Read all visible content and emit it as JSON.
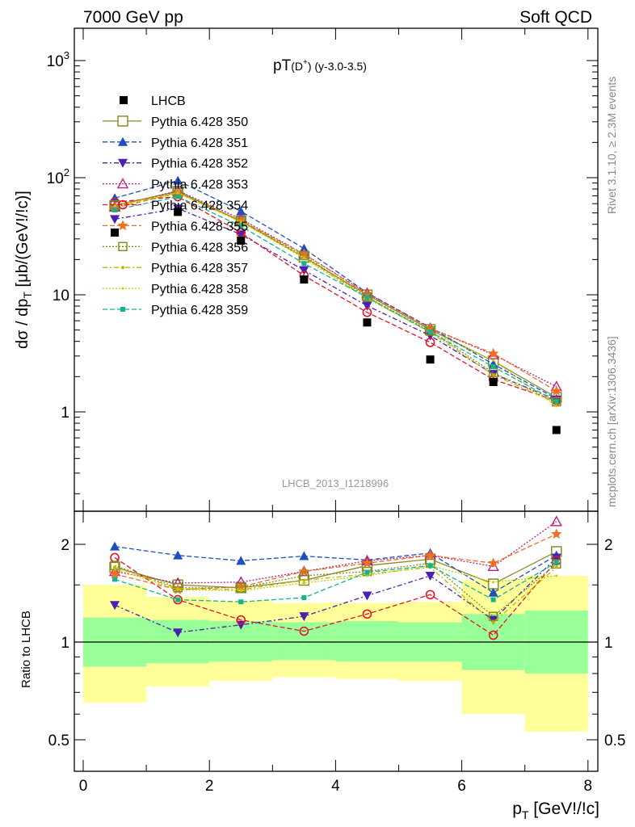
{
  "header": {
    "left_label": "7000 GeV pp",
    "right_label": "Soft QCD",
    "plot_title_main": "pT",
    "plot_title_particle": "(D",
    "plot_title_sup": "+",
    "plot_title_close": ")",
    "plot_title_range": "(y-3.0-3.5)",
    "side_label_top": "Rivet 3.1.10, ≥ 2.3M events",
    "side_label_bottom": "mcplots.cern.ch [arXiv:1306.3436]",
    "analysis_id": "LHCB_2013_I1218996"
  },
  "axes": {
    "ylabel_main": "dσ / dp",
    "ylabel_main_sub": "T",
    "ylabel_main_unit": " [μb/(GeV!/!c)]",
    "ylabel_ratio": "Ratio to LHCB",
    "xlabel": "p",
    "xlabel_sub": "T",
    "xlabel_unit": " [GeV!/!c]",
    "main_ticks": [
      "1",
      "10",
      "10",
      "10"
    ],
    "main_tick_sups": [
      "",
      "",
      "2",
      "3"
    ],
    "ratio_ticks": [
      "0.5",
      "1",
      "2"
    ],
    "x_ticks": [
      "0",
      "2",
      "4",
      "6",
      "8"
    ]
  },
  "chart_data": {
    "type": "scatter",
    "xlabel": "p_T [GeV!/!c]",
    "ylabel": "dσ / dp_T [μb/(GeV!/!c)]",
    "ratio_ylabel": "Ratio to LHCB",
    "x": [
      0.5,
      1.5,
      2.5,
      3.5,
      4.5,
      5.5,
      6.5,
      7.5
    ],
    "bins": [
      [
        0,
        1
      ],
      [
        1,
        2
      ],
      [
        2,
        3
      ],
      [
        3,
        4
      ],
      [
        4,
        5
      ],
      [
        5,
        6
      ],
      [
        6,
        7
      ],
      [
        7,
        8
      ]
    ],
    "xlim": [
      -0.2,
      8.2
    ],
    "ylim": [
      0.13,
      2000
    ],
    "ylog": true,
    "ratio_ylim": [
      0.42,
      2.45
    ],
    "legend_position": "top-left",
    "data": {
      "name": "LHCB",
      "values": [
        34,
        51,
        29,
        13.5,
        5.8,
        2.8,
        1.8,
        0.7
      ]
    },
    "data_band_inner": [
      [
        0.84,
        1.19
      ],
      [
        0.86,
        1.17
      ],
      [
        0.87,
        1.16
      ],
      [
        0.88,
        1.15
      ],
      [
        0.87,
        1.16
      ],
      [
        0.87,
        1.15
      ],
      [
        0.82,
        1.22
      ],
      [
        0.8,
        1.25
      ]
    ],
    "data_band_outer": [
      [
        0.65,
        1.5
      ],
      [
        0.73,
        1.38
      ],
      [
        0.76,
        1.34
      ],
      [
        0.78,
        1.32
      ],
      [
        0.77,
        1.32
      ],
      [
        0.76,
        1.33
      ],
      [
        0.6,
        1.55
      ],
      [
        0.53,
        1.6
      ]
    ],
    "series": [
      {
        "name": "Pythia 6.428 350",
        "color": "#8b8b2a",
        "marker": "square-open",
        "dash": "solid",
        "ratio": [
          1.7,
          1.5,
          1.47,
          1.55,
          1.72,
          1.8,
          1.51,
          1.9
        ]
      },
      {
        "name": "Pythia 6.428 351",
        "color": "#1f4fbf",
        "marker": "triangle-up",
        "dash": "6,3",
        "ratio": [
          1.97,
          1.85,
          1.78,
          1.84,
          1.79,
          1.88,
          1.42,
          1.85
        ]
      },
      {
        "name": "Pythia 6.428 352",
        "color": "#4b1fb0",
        "marker": "triangle-down",
        "dash": "6,3,2,3",
        "ratio": [
          1.3,
          1.07,
          1.13,
          1.2,
          1.39,
          1.6,
          1.17,
          1.82
        ]
      },
      {
        "name": "Pythia 6.428 353",
        "color": "#c01b87",
        "marker": "triangle-open",
        "dash": "2,2",
        "ratio": [
          1.65,
          1.52,
          1.53,
          1.65,
          1.78,
          1.85,
          1.71,
          2.35
        ]
      },
      {
        "name": "Pythia 6.428 354",
        "color": "#e2152a",
        "marker": "circle-open",
        "dash": "6,3",
        "ratio": [
          1.82,
          1.35,
          1.17,
          1.08,
          1.22,
          1.4,
          1.05,
          1.78
        ]
      },
      {
        "name": "Pythia 6.428 355",
        "color": "#f07022",
        "marker": "star",
        "dash": "6,3",
        "ratio": [
          1.62,
          1.45,
          1.48,
          1.65,
          1.75,
          1.85,
          1.75,
          2.15
        ]
      },
      {
        "name": "Pythia 6.428 356",
        "color": "#7f8f1a",
        "marker": "square-open-small",
        "dash": "2,2",
        "ratio": [
          1.72,
          1.47,
          1.47,
          1.6,
          1.65,
          1.75,
          1.2,
          1.74
        ]
      },
      {
        "name": "Pythia 6.428 357",
        "color": "#c8b400",
        "marker": "dot",
        "dash": "6,3,2,3",
        "ratio": [
          1.7,
          1.46,
          1.45,
          1.55,
          1.62,
          1.7,
          1.15,
          1.7
        ]
      },
      {
        "name": "Pythia 6.428 358",
        "color": "#c0d000",
        "marker": "dot-small",
        "dash": "2,2",
        "ratio": [
          1.68,
          1.45,
          1.44,
          1.52,
          1.6,
          1.72,
          1.53,
          1.6
        ]
      },
      {
        "name": "Pythia 6.428 359",
        "color": "#17b48c",
        "marker": "square-filled",
        "dash": "6,3",
        "ratio": [
          1.56,
          1.35,
          1.33,
          1.37,
          1.64,
          1.72,
          1.35,
          1.76
        ]
      }
    ]
  }
}
